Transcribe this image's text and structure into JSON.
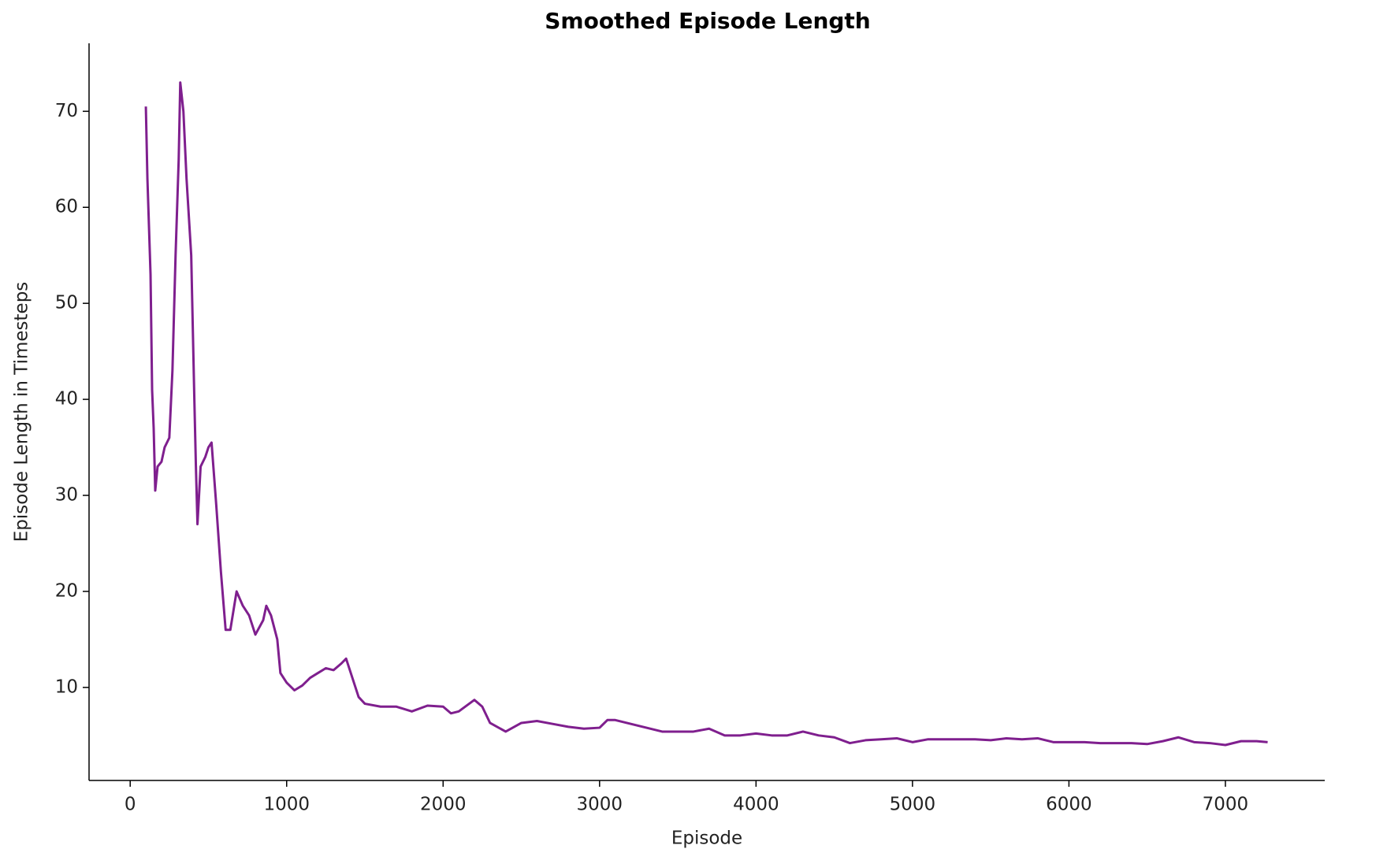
{
  "chart_data": {
    "type": "line",
    "title": "Smoothed Episode Length",
    "x_label": "Episode",
    "y_label": "Episode Length in Timesteps",
    "xlim": [
      -263,
      7635
    ],
    "ylim": [
      0.31,
      77.08
    ],
    "xticks": [
      0,
      1000,
      2000,
      3000,
      4000,
      5000,
      6000,
      7000
    ],
    "yticks": [
      10,
      20,
      30,
      40,
      50,
      60,
      70
    ],
    "grid": false,
    "x": [
      100,
      110,
      130,
      140,
      150,
      160,
      175,
      200,
      220,
      250,
      270,
      290,
      310,
      320,
      340,
      360,
      390,
      410,
      420,
      430,
      450,
      480,
      500,
      520,
      550,
      580,
      610,
      640,
      680,
      720,
      760,
      800,
      850,
      870,
      900,
      940,
      960,
      1000,
      1050,
      1100,
      1150,
      1200,
      1250,
      1300,
      1350,
      1380,
      1420,
      1460,
      1500,
      1600,
      1700,
      1800,
      1900,
      2000,
      2050,
      2100,
      2200,
      2250,
      2300,
      2400,
      2500,
      2600,
      2700,
      2800,
      2900,
      3000,
      3050,
      3100,
      3200,
      3300,
      3400,
      3500,
      3600,
      3700,
      3800,
      3900,
      4000,
      4100,
      4200,
      4300,
      4400,
      4500,
      4600,
      4700,
      4800,
      4900,
      5000,
      5100,
      5200,
      5300,
      5400,
      5500,
      5600,
      5700,
      5800,
      5900,
      6000,
      6100,
      6200,
      6300,
      6400,
      6500,
      6600,
      6700,
      6800,
      6900,
      7000,
      7100,
      7200,
      7270
    ],
    "series": [
      {
        "name": "Smoothed Episode Length",
        "color": "#7f1f8e",
        "values": [
          70.5,
          63,
          53,
          41,
          37,
          30.5,
          33,
          33.5,
          35,
          36,
          43,
          55,
          65,
          73,
          70,
          63,
          55,
          40,
          33,
          27,
          33,
          34,
          35,
          35.5,
          29,
          22,
          16,
          16,
          20,
          18.5,
          17.5,
          15.5,
          17,
          18.5,
          17.5,
          15,
          11.5,
          10.5,
          9.7,
          10.2,
          11,
          11.5,
          12,
          11.8,
          12.5,
          13,
          11,
          9,
          8.3,
          8,
          8,
          7.5,
          8.1,
          8,
          7.3,
          7.5,
          8.7,
          8,
          6.3,
          5.4,
          6.3,
          6.5,
          6.2,
          5.9,
          5.7,
          5.8,
          6.6,
          6.6,
          6.2,
          5.8,
          5.4,
          5.4,
          5.4,
          5.7,
          5.0,
          5.0,
          5.2,
          5.0,
          5.0,
          5.4,
          5.0,
          4.8,
          4.2,
          4.5,
          4.6,
          4.7,
          4.3,
          4.6,
          4.6,
          4.6,
          4.6,
          4.5,
          4.7,
          4.6,
          4.7,
          4.3,
          4.3,
          4.3,
          4.2,
          4.2,
          4.2,
          4.1,
          4.4,
          4.8,
          4.3,
          4.2,
          4.0,
          4.4,
          4.4,
          4.3
        ]
      }
    ]
  }
}
